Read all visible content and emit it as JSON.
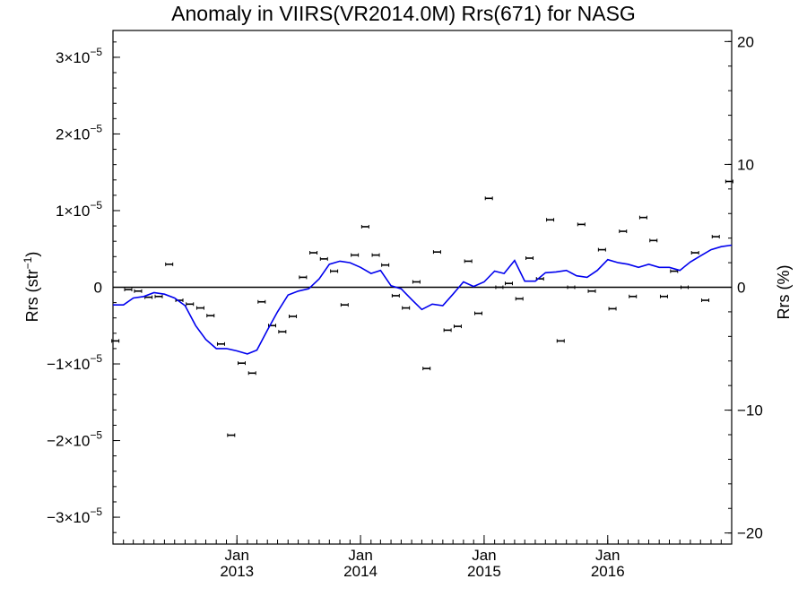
{
  "chart_data": {
    "type": "line",
    "title": "Anomaly in VIIRS(VR2014.0M) Rrs(671) for NASG",
    "ylabel_left": "Rrs (str",
    "ylabel_left_sup": "−1",
    "ylabel_left_close": ")",
    "ylabel_right": "Rrs (%)",
    "x_range": [
      "2012-01-01",
      "2017-01-01"
    ],
    "y_left_range": [
      -3.35e-05,
      3.35e-05
    ],
    "y_right_range": [
      -20.9,
      20.9
    ],
    "y_left_ticks": [
      {
        "value": 3e-05,
        "mantissa": "3",
        "exp": "−5"
      },
      {
        "value": 2e-05,
        "mantissa": "2",
        "exp": "−5"
      },
      {
        "value": 1e-05,
        "mantissa": "1",
        "exp": "−5"
      },
      {
        "value": 0,
        "label": "0"
      },
      {
        "value": -1e-05,
        "mantissa": "−1",
        "exp": "−5"
      },
      {
        "value": -2e-05,
        "mantissa": "−2",
        "exp": "−5"
      },
      {
        "value": -3e-05,
        "mantissa": "−3",
        "exp": "−5"
      }
    ],
    "y_right_ticks": [
      {
        "value": 20,
        "label": "20"
      },
      {
        "value": 10,
        "label": "10"
      },
      {
        "value": 0,
        "label": "0"
      },
      {
        "value": -10,
        "label": "−10"
      },
      {
        "value": -20,
        "label": "−20"
      }
    ],
    "x_ticks": [
      {
        "date": "2013-01-01",
        "month": "Jan",
        "year": "2013"
      },
      {
        "date": "2014-01-01",
        "month": "Jan",
        "year": "2014"
      },
      {
        "date": "2015-01-01",
        "month": "Jan",
        "year": "2015"
      },
      {
        "date": "2016-01-01",
        "month": "Jan",
        "year": "2016"
      }
    ],
    "zero_line": true,
    "series": [
      {
        "kind": "points",
        "color": "#000000",
        "x": [
          "2012-01-08",
          "2012-02-15",
          "2012-03-15",
          "2012-04-15",
          "2012-05-15",
          "2012-06-15",
          "2012-07-15",
          "2012-08-15",
          "2012-09-15",
          "2012-10-15",
          "2012-11-15",
          "2012-12-15",
          "2013-01-15",
          "2013-02-15",
          "2013-03-15",
          "2013-04-15",
          "2013-05-15",
          "2013-06-15",
          "2013-07-15",
          "2013-08-15",
          "2013-09-15",
          "2013-10-15",
          "2013-11-15",
          "2013-12-15",
          "2014-01-15",
          "2014-02-15",
          "2014-03-15",
          "2014-04-15",
          "2014-05-15",
          "2014-06-15",
          "2014-07-15",
          "2014-08-15",
          "2014-09-15",
          "2014-10-15",
          "2014-11-15",
          "2014-12-15",
          "2015-01-15",
          "2015-02-15",
          "2015-03-15",
          "2015-04-15",
          "2015-05-15",
          "2015-06-15",
          "2015-07-15",
          "2015-08-15",
          "2015-09-15",
          "2015-10-15",
          "2015-11-15",
          "2015-12-15",
          "2016-01-15",
          "2016-02-15",
          "2016-03-15",
          "2016-04-15",
          "2016-05-15",
          "2016-06-15",
          "2016-07-15",
          "2016-08-15",
          "2016-09-15",
          "2016-10-15",
          "2016-11-15",
          "2016-12-25"
        ],
        "y": [
          -7e-06,
          -3e-07,
          -5e-07,
          -1.3e-06,
          -1.2e-06,
          3e-06,
          -1.7e-06,
          -2.2e-06,
          -2.7e-06,
          -3.7e-06,
          -7.4e-06,
          -1.93e-05,
          -9.9e-06,
          -1.12e-05,
          -1.9e-06,
          -5e-06,
          -5.8e-06,
          -3.8e-06,
          1.3e-06,
          4.5e-06,
          3.7e-06,
          2.1e-06,
          -2.3e-06,
          4.2e-06,
          7.9e-06,
          4.2e-06,
          2.9e-06,
          -1.1e-06,
          -2.7e-06,
          7e-07,
          -1.06e-05,
          4.6e-06,
          -5.6e-06,
          -5.1e-06,
          3.4e-06,
          -3.4e-06,
          1.16e-05,
          0.0,
          5e-07,
          -1.5e-06,
          3.8e-06,
          1.1e-06,
          8.8e-06,
          -7e-06,
          0.0,
          8.2e-06,
          -5e-07,
          4.9e-06,
          -2.8e-06,
          7.3e-06,
          -1.2e-06,
          9.1e-06,
          6.1e-06,
          -1.2e-06,
          2.1e-06,
          0.0,
          4.5e-06,
          -1.7e-06,
          6.6e-06,
          1.38e-05
        ]
      },
      {
        "kind": "line",
        "color": "#0000ee",
        "x": [
          "2012-01-01",
          "2012-02-01",
          "2012-03-01",
          "2012-04-01",
          "2012-05-01",
          "2012-06-01",
          "2012-07-01",
          "2012-08-01",
          "2012-09-01",
          "2012-10-01",
          "2012-11-01",
          "2012-12-01",
          "2013-01-01",
          "2013-02-01",
          "2013-03-01",
          "2013-04-01",
          "2013-05-01",
          "2013-06-01",
          "2013-07-01",
          "2013-08-01",
          "2013-09-01",
          "2013-10-01",
          "2013-11-01",
          "2013-12-01",
          "2014-01-01",
          "2014-02-01",
          "2014-03-01",
          "2014-04-01",
          "2014-05-01",
          "2014-06-01",
          "2014-07-01",
          "2014-08-01",
          "2014-09-01",
          "2014-10-01",
          "2014-11-01",
          "2014-12-01",
          "2015-01-01",
          "2015-02-01",
          "2015-03-01",
          "2015-04-01",
          "2015-05-01",
          "2015-06-01",
          "2015-07-01",
          "2015-08-01",
          "2015-09-01",
          "2015-10-01",
          "2015-11-01",
          "2015-12-01",
          "2016-01-01",
          "2016-02-01",
          "2016-03-01",
          "2016-04-01",
          "2016-05-01",
          "2016-06-01",
          "2016-07-01",
          "2016-08-01",
          "2016-09-01",
          "2016-10-01",
          "2016-11-01",
          "2016-12-01",
          "2017-01-01"
        ],
        "y": [
          -2.3e-06,
          -2.3e-06,
          -1.4e-06,
          -1.2e-06,
          -7e-07,
          -9e-07,
          -1.4e-06,
          -2.4e-06,
          -5e-06,
          -6.8e-06,
          -8e-06,
          -8e-06,
          -8.3e-06,
          -8.7e-06,
          -8.2e-06,
          -5.6e-06,
          -3.2e-06,
          -1e-06,
          -5e-07,
          -2e-07,
          1.1e-06,
          3e-06,
          3.4e-06,
          3.2e-06,
          2.6e-06,
          1.8e-06,
          2.2e-06,
          2e-07,
          -2e-07,
          -1.6e-06,
          -2.9e-06,
          -2.2e-06,
          -2.4e-06,
          -9e-07,
          7e-07,
          1e-07,
          7e-07,
          2.1e-06,
          1.8e-06,
          3.5e-06,
          8e-07,
          8e-07,
          1.9e-06,
          2e-06,
          2.2e-06,
          1.5e-06,
          1.3e-06,
          2.2e-06,
          3.6e-06,
          3.2e-06,
          3e-06,
          2.6e-06,
          3e-06,
          2.6e-06,
          2.6e-06,
          2.2e-06,
          3.3e-06,
          4.1e-06,
          4.9e-06,
          5.3e-06,
          5.5e-06
        ]
      }
    ]
  }
}
